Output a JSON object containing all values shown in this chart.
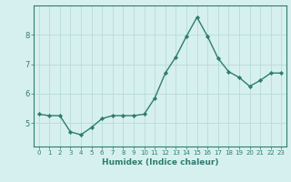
{
  "x": [
    0,
    1,
    2,
    3,
    4,
    5,
    6,
    7,
    8,
    9,
    10,
    11,
    12,
    13,
    14,
    15,
    16,
    17,
    18,
    19,
    20,
    21,
    22,
    23
  ],
  "y": [
    5.3,
    5.25,
    5.25,
    4.7,
    4.6,
    4.85,
    5.15,
    5.25,
    5.25,
    5.25,
    5.3,
    5.85,
    6.7,
    7.25,
    7.95,
    8.6,
    7.95,
    7.2,
    6.75,
    6.55,
    6.25,
    6.45,
    6.7,
    6.7
  ],
  "xlabel": "Humidex (Indice chaleur)",
  "xlim": [
    -0.5,
    23.5
  ],
  "ylim": [
    4.2,
    9.0
  ],
  "yticks": [
    5,
    6,
    7,
    8
  ],
  "xticks": [
    0,
    1,
    2,
    3,
    4,
    5,
    6,
    7,
    8,
    9,
    10,
    11,
    12,
    13,
    14,
    15,
    16,
    17,
    18,
    19,
    20,
    21,
    22,
    23
  ],
  "line_color": "#2e7d6e",
  "marker_color": "#2e7d6e",
  "bg_color": "#d6f0ef",
  "grid_color": "#b8dbd8",
  "axis_color": "#2e7d6e",
  "tick_color": "#2e7d6e",
  "label_color": "#2e7d6e"
}
